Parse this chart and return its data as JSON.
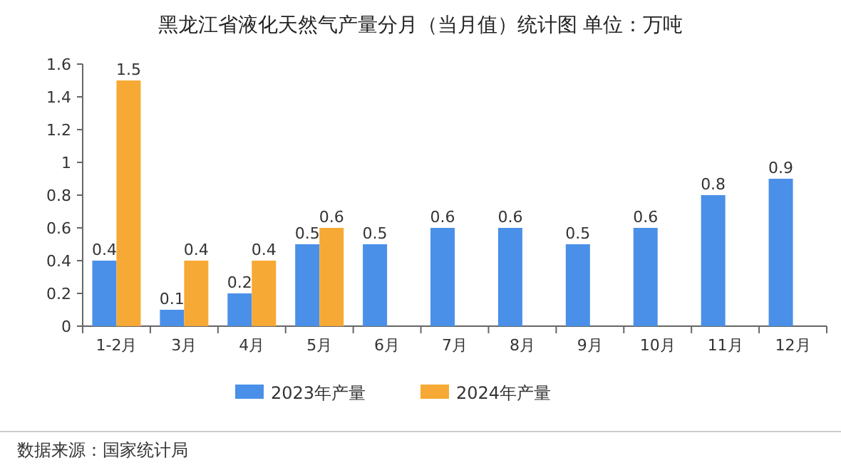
{
  "chart_data": {
    "type": "bar",
    "title": "黑龙江省液化天然气产量分月（当月值）统计图  单位：万吨",
    "categories": [
      "1-2月",
      "3月",
      "4月",
      "5月",
      "6月",
      "7月",
      "8月",
      "9月",
      "10月",
      "11月",
      "12月"
    ],
    "series": [
      {
        "name": "2023年产量",
        "color": "#4a90e8",
        "values": [
          0.4,
          0.1,
          0.2,
          0.5,
          0.5,
          0.6,
          0.6,
          0.5,
          0.6,
          0.8,
          0.9
        ]
      },
      {
        "name": "2024年产量",
        "color": "#f7a935",
        "values": [
          1.5,
          0.4,
          0.4,
          0.6,
          null,
          null,
          null,
          null,
          null,
          null,
          null
        ]
      }
    ],
    "ylim": [
      0,
      1.6
    ],
    "yticks": [
      0,
      0.2,
      0.4,
      0.6,
      0.8,
      1,
      1.2,
      1.4,
      1.6
    ],
    "data_labels": true,
    "grid": false,
    "legend": "bottom",
    "annotations": [
      "数据来源：国家统计局"
    ]
  }
}
